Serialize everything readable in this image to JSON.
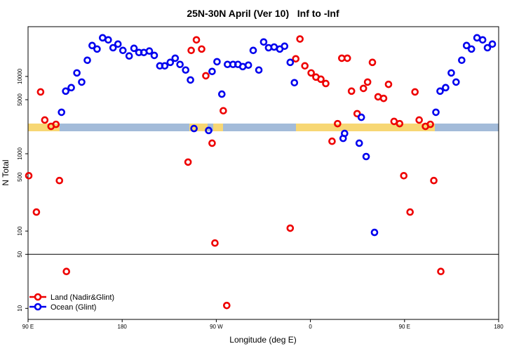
{
  "chart_data": {
    "type": "scatter",
    "title": "25N-30N April (Ver 10)   Inf to -Inf",
    "xlabel": "Longitude (deg E)",
    "ylabel": "N Total",
    "log_y": true,
    "legend": "lower left",
    "hline": 50,
    "xlim": [
      90,
      540
    ],
    "ylim": [
      7.2,
      44000
    ],
    "xticks": [
      {
        "value": 90,
        "label": "90 E"
      },
      180,
      {
        "value": 270,
        "label": "90 W"
      },
      {
        "value": 360,
        "label": "0"
      },
      {
        "value": 450,
        "label": "90 E"
      },
      {
        "value": 540,
        "label": "180"
      }
    ],
    "yticks": [
      10,
      50,
      100,
      500,
      1000,
      5000,
      10000
    ],
    "series": [
      {
        "name": "Land (Nadir&Glint)",
        "color": "#ee0000",
        "x": [
          90.7,
          98,
          102,
          106,
          112,
          116.7,
          120,
          126.7,
          243,
          246,
          251,
          256,
          260,
          266,
          268.7,
          276.7,
          280,
          340.7,
          346,
          350,
          354.7,
          360.7,
          365.3,
          370,
          374.7,
          380.7,
          386,
          390,
          395.3,
          399.3,
          404.7,
          410.7,
          414.7,
          419.3,
          424.7,
          430,
          434.7,
          440,
          445.3,
          449.3,
          455.3,
          460,
          464,
          470,
          474.7,
          478,
          484.7
        ],
        "values": [
          520,
          176,
          6300,
          2730,
          2260,
          2400,
          450,
          30,
          780,
          21700,
          29700,
          22600,
          10200,
          1370,
          70,
          3600,
          10.9,
          109,
          16900,
          30500,
          13700,
          11100,
          9800,
          9200,
          8100,
          1450,
          2450,
          17200,
          17200,
          6450,
          3300,
          7000,
          8450,
          15200,
          5450,
          5200,
          7900,
          2620,
          2450,
          520,
          176,
          6300,
          2730,
          2260,
          2400,
          450,
          30
        ]
      },
      {
        "name": "Ocean (Glint)",
        "color": "#0000ee",
        "x": [
          122,
          126,
          131.3,
          136.7,
          141.3,
          146.7,
          151.3,
          156,
          161.3,
          166.7,
          171.3,
          176,
          180.7,
          186.7,
          191.3,
          196,
          200.7,
          206,
          210.7,
          216,
          220.7,
          226,
          230.7,
          235.3,
          240.7,
          245.3,
          248.7,
          262.7,
          266,
          270.7,
          275.3,
          280.7,
          286,
          290.7,
          295.3,
          300.7,
          305.3,
          310.7,
          315.3,
          320,
          325.3,
          330.7,
          335.3,
          340.7,
          344.7,
          392.7,
          391.3,
          406.7,
          408.7,
          413.3,
          421.3,
          480,
          484,
          489.3,
          494.7,
          499.3,
          504.7,
          509.3,
          514,
          519.3,
          524.7,
          529.3,
          534
        ],
        "values": [
          3440,
          6450,
          7160,
          11100,
          8450,
          16200,
          25100,
          22600,
          31600,
          29700,
          23500,
          26200,
          21700,
          18400,
          23100,
          20400,
          20400,
          21300,
          18700,
          13700,
          13700,
          15200,
          17200,
          14300,
          12100,
          9000,
          2120,
          2000,
          11600,
          15500,
          5900,
          14300,
          14300,
          14300,
          13400,
          14000,
          21700,
          12100,
          27900,
          23500,
          24000,
          22600,
          24600,
          15200,
          8300,
          1830,
          1580,
          1370,
          2960,
          920,
          96,
          3440,
          6450,
          7160,
          11100,
          8450,
          16200,
          25100,
          22600,
          31600,
          29700,
          23500,
          26200
        ]
      }
    ]
  }
}
